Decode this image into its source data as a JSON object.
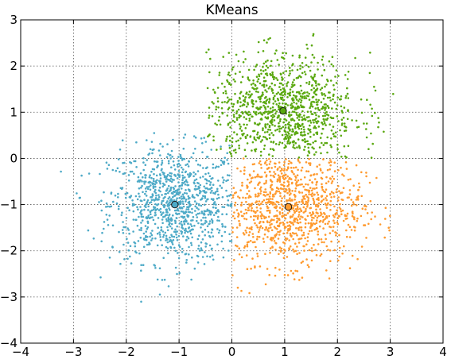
{
  "chart_data": {
    "type": "scatter",
    "title": "KMeans",
    "xlabel": "",
    "ylabel": "",
    "xlim": [
      -4,
      4
    ],
    "ylim": [
      -4,
      3
    ],
    "x_ticks": [
      -4,
      -3,
      -2,
      -1,
      0,
      1,
      2,
      3,
      4
    ],
    "y_ticks": [
      -4,
      -3,
      -2,
      -1,
      0,
      1,
      2,
      3
    ],
    "x_tick_labels": [
      "−4",
      "−3",
      "−2",
      "−1",
      "0",
      "1",
      "2",
      "3",
      "4"
    ],
    "y_tick_labels": [
      "−4",
      "−3",
      "−2",
      "−1",
      "0",
      "1",
      "2",
      "3"
    ],
    "grid": true,
    "legend": "none",
    "colors": {
      "cluster_1": "#4eaac7",
      "cluster_2": "#ff9a2e",
      "cluster_3": "#5aa80f",
      "centroid_edge": "#1a1a1a"
    },
    "series": [
      {
        "color_key": "cluster_1",
        "region": "x < 0",
        "centroid": [
          -1.08,
          -1.0
        ],
        "points_shown": 1000,
        "spread": [
          0.62,
          0.62
        ],
        "x_range": [
          -3.6,
          0
        ],
        "y_range": [
          -3.4,
          0.8
        ]
      },
      {
        "color_key": "cluster_2",
        "region": "x > 0 and y < 0",
        "centroid": [
          1.07,
          -1.05
        ],
        "points_shown": 1000,
        "spread": [
          0.7,
          0.62
        ],
        "x_range": [
          0,
          3.0
        ],
        "y_range": [
          -3.1,
          0
        ]
      },
      {
        "color_key": "cluster_3",
        "region": "y > 0",
        "centroid": [
          0.97,
          1.03
        ],
        "points_shown": 1000,
        "spread": [
          0.7,
          0.6
        ],
        "x_range": [
          -0.5,
          3.2
        ],
        "y_range": [
          0,
          2.9
        ]
      }
    ]
  }
}
